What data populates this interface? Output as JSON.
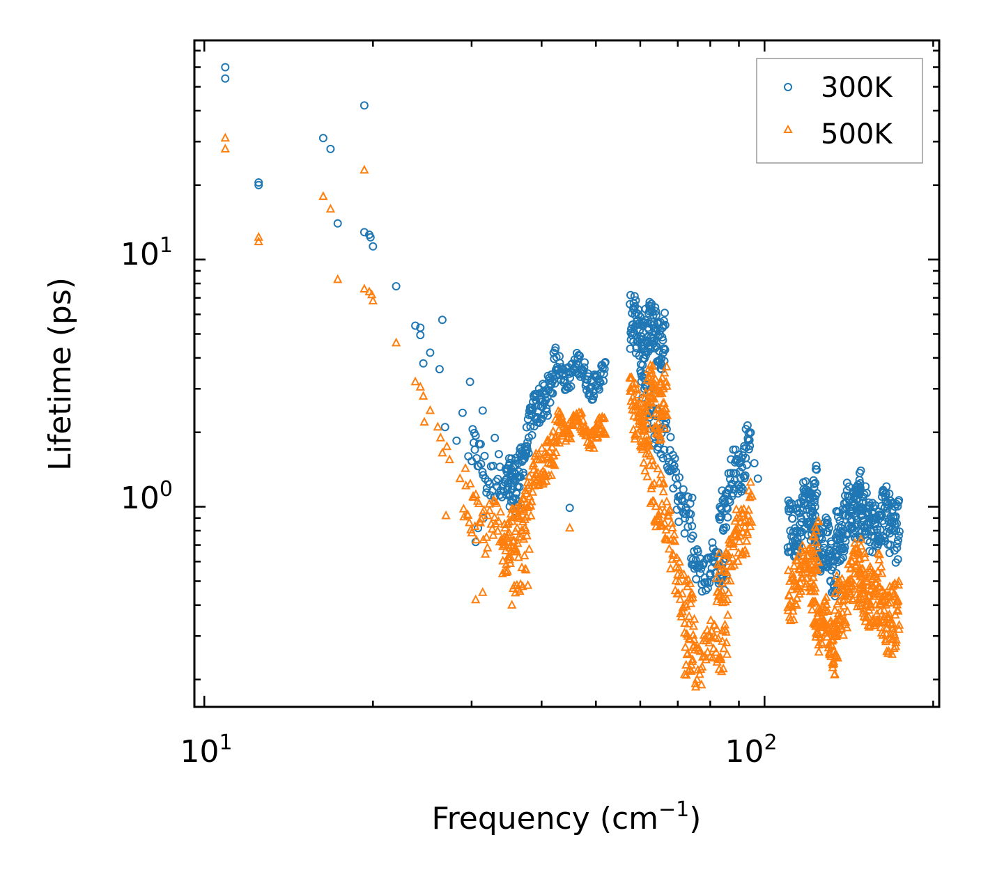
{
  "chart_data": {
    "type": "scatter",
    "xscale": "log",
    "yscale": "log",
    "xlim": [
      9.6,
      205
    ],
    "ylim": [
      0.155,
      77
    ],
    "xlabel": "Frequency (cm",
    "xlabel_exp": "−1",
    "xlabel_end": ")",
    "ylabel": "Lifetime (ps)",
    "x_ticks": [
      {
        "value": 10,
        "base": "10",
        "exp": "1"
      },
      {
        "value": 100,
        "base": "10",
        "exp": "2"
      }
    ],
    "y_ticks": [
      {
        "value": 1,
        "base": "10",
        "exp": "0"
      },
      {
        "value": 10,
        "base": "10",
        "exp": "1"
      }
    ],
    "legend_position": "top-right",
    "series": [
      {
        "name": "300K",
        "marker": "circle",
        "color": "#1f77b4",
        "points": [
          [
            10.9,
            60
          ],
          [
            10.9,
            54
          ],
          [
            12.5,
            20.5
          ],
          [
            12.5,
            20
          ],
          [
            16.3,
            31
          ],
          [
            16.8,
            28
          ],
          [
            17.3,
            14
          ],
          [
            19.3,
            42
          ],
          [
            19.3,
            12.9
          ],
          [
            19.7,
            12.6
          ],
          [
            19.8,
            12.3
          ],
          [
            20.0,
            11.3
          ],
          [
            22.0,
            7.8
          ],
          [
            23.8,
            5.4
          ],
          [
            24.3,
            5.3
          ],
          [
            24.3,
            4.95
          ],
          [
            24.6,
            3.8
          ],
          [
            25.3,
            4.2
          ],
          [
            26.3,
            3.6
          ],
          [
            26.6,
            5.7
          ],
          [
            26.9,
            2.1
          ],
          [
            28.2,
            1.85
          ],
          [
            28.9,
            2.4
          ],
          [
            29.8,
            3.2
          ],
          [
            29.6,
            1.6
          ],
          [
            30.4,
            1.7
          ],
          [
            30.5,
            0.72
          ],
          [
            30.8,
            0.82
          ],
          [
            31.4,
            2.45
          ],
          [
            31.5,
            0.9
          ],
          [
            33.0,
            1.9
          ],
          [
            33.7,
            1.45
          ],
          [
            44.9,
            0.99
          ],
          [
            90.2,
            1.5
          ],
          [
            95.9,
            1.5
          ],
          [
            97.3,
            1.3
          ]
        ],
        "segments": [
          {
            "from": 30.0,
            "to": 36.5,
            "n": 50,
            "y_from": 1.6,
            "y_to": 1.05,
            "amp": 0.18,
            "phase": 0.4
          },
          {
            "from": 34.5,
            "to": 42.5,
            "n": 130,
            "y_from": 1.1,
            "y_to": 3.8,
            "amp": 0.16,
            "phase": 1.1
          },
          {
            "from": 42.5,
            "to": 52.0,
            "n": 95,
            "y_from": 3.7,
            "y_to": 3.2,
            "amp": 0.1,
            "phase": 2.3
          },
          {
            "from": 57.5,
            "to": 66.5,
            "n": 130,
            "y_from": 5.2,
            "y_to": 5.0,
            "amp": 0.22,
            "phase": 0.7
          },
          {
            "from": 60.0,
            "to": 74.5,
            "n": 95,
            "y_from": 3.4,
            "y_to": 0.8,
            "amp": 0.2,
            "phase": 1.9
          },
          {
            "from": 74.0,
            "to": 85.5,
            "n": 65,
            "y_from": 0.55,
            "y_to": 0.58,
            "amp": 0.15,
            "phase": 0.2
          },
          {
            "from": 83.0,
            "to": 94.5,
            "n": 75,
            "y_from": 0.95,
            "y_to": 1.85,
            "amp": 0.18,
            "phase": 2.6
          },
          {
            "from": 110.0,
            "to": 124.0,
            "n": 95,
            "y_from": 0.75,
            "y_to": 1.15,
            "amp": 0.22,
            "phase": 1.4
          },
          {
            "from": 121.0,
            "to": 135.0,
            "n": 95,
            "y_from": 0.85,
            "y_to": 0.55,
            "amp": 0.2,
            "phase": 0.9
          },
          {
            "from": 134.0,
            "to": 148.5,
            "n": 95,
            "y_from": 0.75,
            "y_to": 1.1,
            "amp": 0.22,
            "phase": 2.1
          },
          {
            "from": 146.0,
            "to": 174.0,
            "n": 150,
            "y_from": 0.9,
            "y_to": 0.85,
            "amp": 0.24,
            "phase": 0.3
          }
        ]
      },
      {
        "name": "500K",
        "marker": "triangle",
        "color": "#ff7f0e",
        "points": [
          [
            10.9,
            31
          ],
          [
            10.9,
            28
          ],
          [
            12.5,
            12.3
          ],
          [
            12.5,
            11.8
          ],
          [
            16.3,
            18
          ],
          [
            16.8,
            16
          ],
          [
            17.3,
            8.3
          ],
          [
            19.3,
            23
          ],
          [
            19.3,
            7.6
          ],
          [
            19.7,
            7.4
          ],
          [
            19.9,
            7.2
          ],
          [
            20.0,
            6.8
          ],
          [
            22.0,
            4.6
          ],
          [
            23.8,
            3.2
          ],
          [
            24.3,
            3.05
          ],
          [
            24.6,
            2.8
          ],
          [
            24.7,
            2.2
          ],
          [
            25.3,
            2.45
          ],
          [
            26.1,
            2.1
          ],
          [
            26.4,
            1.9
          ],
          [
            26.6,
            1.65
          ],
          [
            27.0,
            0.92
          ],
          [
            27.1,
            1.75
          ],
          [
            27.4,
            1.55
          ],
          [
            28.6,
            1.3
          ],
          [
            30.2,
            1.1
          ],
          [
            30.5,
            0.42
          ],
          [
            31.4,
            0.45
          ],
          [
            33.0,
            1.05
          ],
          [
            35.4,
            0.4
          ],
          [
            44.9,
            0.82
          ]
        ],
        "segments": [
          {
            "from": 29.0,
            "to": 38.0,
            "n": 70,
            "y_from": 1.05,
            "y_to": 0.55,
            "amp": 0.22,
            "phase": 1.7
          },
          {
            "from": 34.0,
            "to": 43.0,
            "n": 140,
            "y_from": 0.6,
            "y_to": 2.1,
            "amp": 0.2,
            "phase": 0.5
          },
          {
            "from": 43.0,
            "to": 52.0,
            "n": 90,
            "y_from": 2.2,
            "y_to": 1.95,
            "amp": 0.08,
            "phase": 2.9
          },
          {
            "from": 57.5,
            "to": 67.0,
            "n": 130,
            "y_from": 2.3,
            "y_to": 2.8,
            "amp": 0.25,
            "phase": 1.2
          },
          {
            "from": 60.5,
            "to": 75.0,
            "n": 110,
            "y_from": 1.9,
            "y_to": 0.3,
            "amp": 0.25,
            "phase": 2.4
          },
          {
            "from": 72.0,
            "to": 86.0,
            "n": 70,
            "y_from": 0.22,
            "y_to": 0.3,
            "amp": 0.18,
            "phase": 0.6
          },
          {
            "from": 82.0,
            "to": 95.0,
            "n": 80,
            "y_from": 0.45,
            "y_to": 1.0,
            "amp": 0.22,
            "phase": 1.5
          },
          {
            "from": 110.0,
            "to": 125.0,
            "n": 90,
            "y_from": 0.45,
            "y_to": 0.65,
            "amp": 0.22,
            "phase": 2.8
          },
          {
            "from": 121.0,
            "to": 135.0,
            "n": 95,
            "y_from": 0.4,
            "y_to": 0.27,
            "amp": 0.2,
            "phase": 1.0
          },
          {
            "from": 133.0,
            "to": 150.0,
            "n": 100,
            "y_from": 0.35,
            "y_to": 0.6,
            "amp": 0.25,
            "phase": 0.2
          },
          {
            "from": 148.0,
            "to": 174.0,
            "n": 150,
            "y_from": 0.5,
            "y_to": 0.35,
            "amp": 0.3,
            "phase": 2.2
          }
        ]
      }
    ]
  }
}
